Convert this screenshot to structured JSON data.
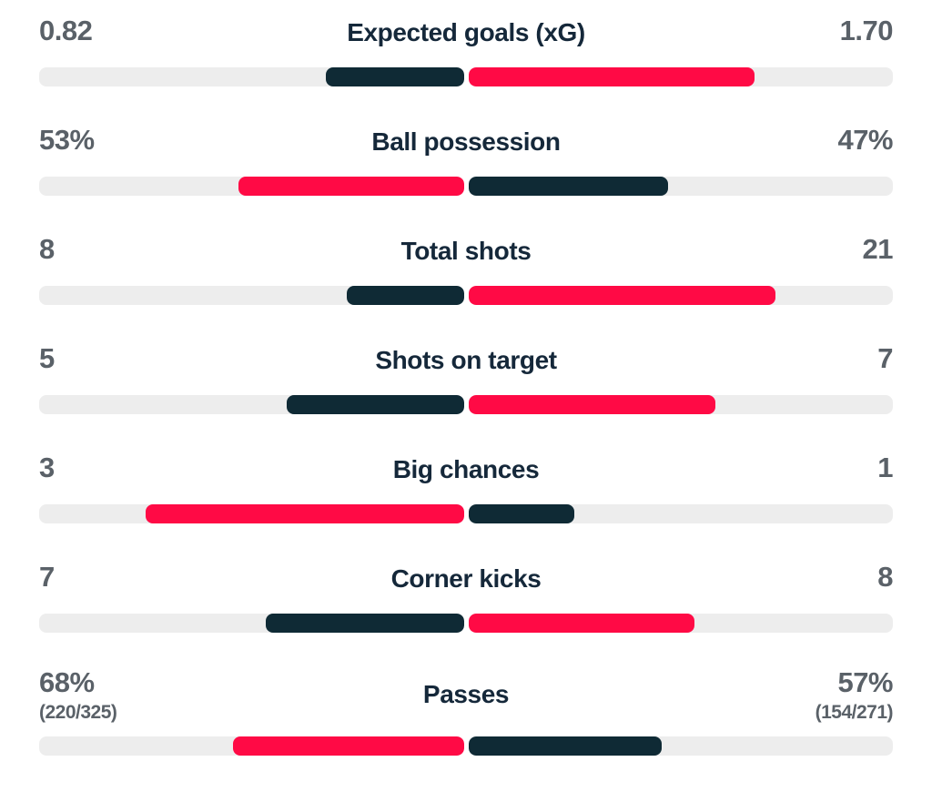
{
  "theme": {
    "winner_bar_color": "#ff0a45",
    "loser_bar_color": "#0f2a35",
    "track_color": "#ededed",
    "label_color": "#15283a",
    "value_color": "#5a6168",
    "background": "#ffffff"
  },
  "stats": {
    "rows": [
      {
        "label": "Expected goals (xG)",
        "left_value": "0.82",
        "right_value": "1.70",
        "left_pct": 32.5,
        "right_pct": 67.5,
        "winner": "right"
      },
      {
        "label": "Ball possession",
        "left_value": "53%",
        "right_value": "47%",
        "left_pct": 53,
        "right_pct": 47,
        "winner": "left"
      },
      {
        "label": "Total shots",
        "left_value": "8",
        "right_value": "21",
        "left_pct": 27.6,
        "right_pct": 72.4,
        "winner": "right"
      },
      {
        "label": "Shots on target",
        "left_value": "5",
        "right_value": "7",
        "left_pct": 41.7,
        "right_pct": 58.3,
        "winner": "right"
      },
      {
        "label": "Big chances",
        "left_value": "3",
        "right_value": "1",
        "left_pct": 75,
        "right_pct": 25,
        "winner": "left"
      },
      {
        "label": "Corner kicks",
        "left_value": "7",
        "right_value": "8",
        "left_pct": 46.7,
        "right_pct": 53.3,
        "winner": "right"
      },
      {
        "label": "Passes",
        "left_value": "68%",
        "left_sub": "(220/325)",
        "right_value": "57%",
        "right_sub": "(154/271)",
        "left_pct": 54.4,
        "right_pct": 45.6,
        "winner": "left"
      }
    ]
  }
}
